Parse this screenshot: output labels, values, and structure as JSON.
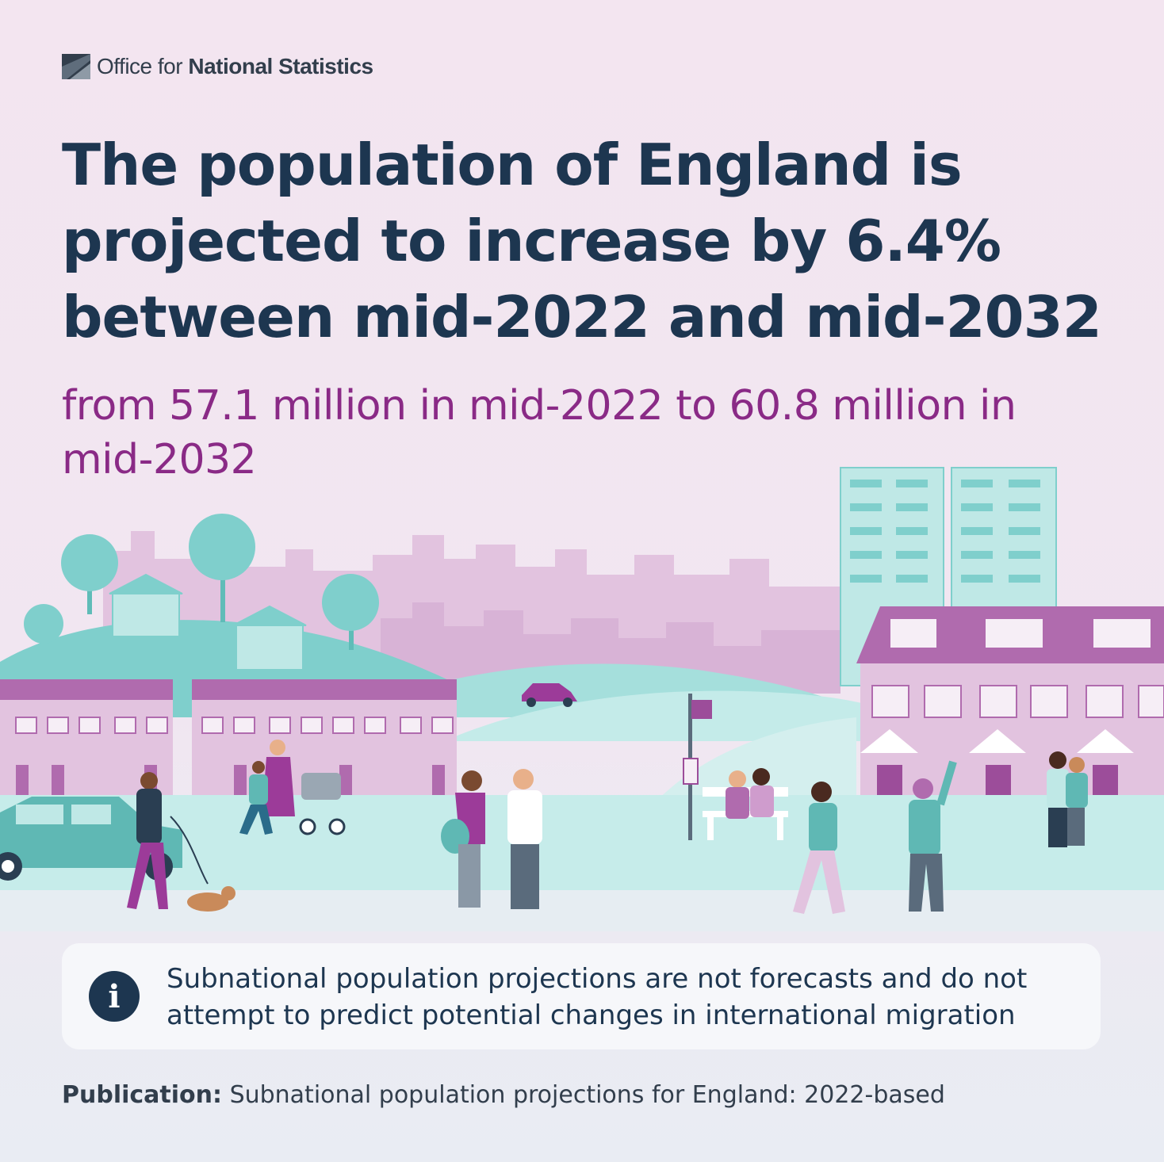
{
  "branding": {
    "org_prefix": "Office for",
    "org_name": "National Statistics"
  },
  "headline": "The population of England is projected to increase by 6.4% between mid-2022 and mid-2032",
  "subheadline": "from 57.1 million in mid-2022 to 60.8 million in mid-2032",
  "info": {
    "icon": "info-icon",
    "glyph": "i",
    "text": "Subnational population projections are not forecasts and do not attempt to predict potential changes in international migration"
  },
  "publication": {
    "label": "Publication:",
    "title": "Subnational population projections for England: 2022-based"
  },
  "colors": {
    "navy": "#1d3650",
    "purple": "#8a2a86",
    "teal": "#7fcfcc",
    "lilac": "#cf9ccd",
    "background": "#f3e5f0"
  }
}
